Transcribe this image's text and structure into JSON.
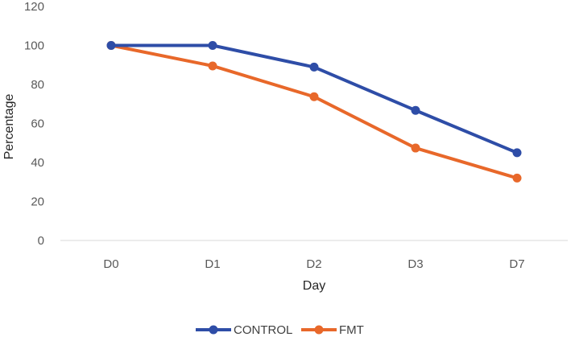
{
  "chart_data": {
    "type": "line",
    "title": "",
    "xlabel": "Day",
    "ylabel": "Percentage",
    "categories": [
      "D0",
      "D1",
      "D2",
      "D3",
      "D7"
    ],
    "ylim": [
      0,
      120
    ],
    "yticks": [
      0,
      20,
      40,
      60,
      80,
      100,
      120
    ],
    "grid": false,
    "legend_position": "bottom",
    "series": [
      {
        "name": "CONTROL",
        "color": "#2E4DA7",
        "values": [
          100,
          100,
          88.9,
          66.7,
          45
        ]
      },
      {
        "name": "FMT",
        "color": "#E8682A",
        "values": [
          100,
          89.5,
          73.7,
          47.4,
          32
        ]
      }
    ]
  }
}
